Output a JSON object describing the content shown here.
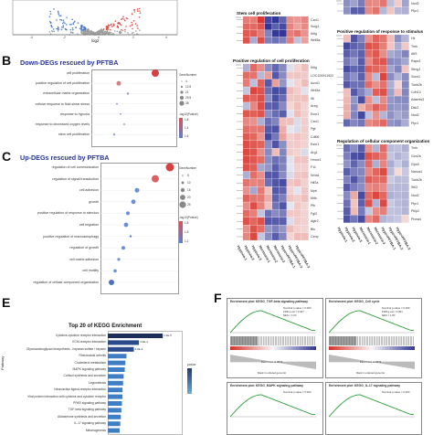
{
  "panels": {
    "A": {
      "axis_x": "log2",
      "ticks": [
        "-4",
        "-2",
        "0",
        "2",
        "4"
      ]
    },
    "B": {
      "letter": "B",
      "title": "Down-DEGs rescued by PFTBA",
      "terms": [
        "cell proliferation",
        "positive regulation of cell proliferation",
        "extracellular matrix organization",
        "cellular response to fluid shear stress",
        "response to hypoxia",
        "response to decreased oxygen levels",
        "stem cell proliferation"
      ],
      "legend_count_title": "GeneNumber",
      "legend_count_values": [
        "4",
        "12.5",
        "21",
        "29.5",
        "38"
      ],
      "legend_p_title": "-log10(Pvalue)",
      "legend_p_values": [
        "1.8",
        "1.4",
        "1.6"
      ]
    },
    "C": {
      "letter": "C",
      "title": "Up-DEGs rescued by PFTBA",
      "terms": [
        "regulation of cell communication",
        "regulation of signal transduction",
        "cell adhesion",
        "growth",
        "positive regulation of response to stimulus",
        "cell migration",
        "positive regulation of macroautophagy",
        "regulation of growth",
        "cell matrix adhesion",
        "cell motility",
        "regulation of cellular component organization"
      ],
      "legend_count_title": "GeneNumber",
      "legend_count_values": [
        "5",
        "10",
        "15",
        "20",
        "25"
      ],
      "legend_p_title": "-log10(Pvalue)",
      "legend_p_values": [
        "1.8",
        "1.5",
        "1.2"
      ]
    },
    "D": {
      "h1_title": "Stem cell proliferation",
      "h1_genes": [
        "Cxcl1",
        "Scrg1",
        "Kitlg",
        "Wnt5a"
      ],
      "h2_title": "Positive regulation of cell proliferation",
      "h2_genes": [
        "Kitlg",
        "LOC100911922",
        "Acvrl1",
        "Wnt5a",
        "Il6",
        "Areg",
        "Ecm1",
        "Cxcl1",
        "Pgf",
        "Cdl06",
        "Esm1",
        "Arg1",
        "Hmox1",
        "F11",
        "Nr4a1",
        "Hif2a",
        "Myb",
        "Mdk",
        "Ptk",
        "Fgf2",
        "Agtr2",
        "Btc",
        "Cenp"
      ],
      "h3_genes": [
        "Nod2",
        "Plpr1"
      ],
      "h4_title": "Positive regulation of response to stimulus",
      "h4_genes": [
        "Hk",
        "Trek",
        "Atf3",
        "Rapc3",
        "Stmg1",
        "Socs1",
        "Tubb2b",
        "Cdh13",
        "Adamts3",
        "Dkk2",
        "Nod2",
        "Plpr1"
      ],
      "h5_title": "Regulation of cellular component organization",
      "h5_genes": [
        "Trek",
        "Gon2b",
        "Gpx8",
        "Nanus1",
        "Tubb2b",
        "Stil3",
        "Nod2",
        "Plpr1",
        "Pklp2",
        "Plxna4"
      ],
      "columns": [
        "Hypoxia-1",
        "Hypoxia-2",
        "Hypoxia-3",
        "Normoxia-1",
        "Normoxia-2",
        "Normoxia-3",
        "Hypo+PFTBA-1",
        "Hypo+PFTBA-2",
        "Hypo+PFTBA-3"
      ]
    },
    "E": {
      "letter": "E",
      "title": "Top 20 of KEGG Enrichment",
      "ylabel": "Pathway",
      "terms": [
        "Cytokine-cytokine receptor interaction",
        "ECM-receptor interaction",
        "Glycosaminoglycan biosynthesis - heparan sulfate / heparin",
        "Rheumatoid arthritis",
        "Cholesterol metabolism",
        "MAPK signaling pathway",
        "Cortisol synthesis and secretion",
        "Legionellosis",
        "Neuroactive ligand-receptor interaction",
        "Viral protein interaction with cytokine and cytokine receptor",
        "PPAR signaling pathway",
        "TGF-beta signaling pathway",
        "Aldosterone synthesis and secretion",
        "IL-17 signaling pathway",
        "Melanogenesis"
      ],
      "values": [
        0.97,
        0.55,
        0.46,
        0.33,
        0.31,
        0.3,
        0.28,
        0.27,
        0.26,
        0.26,
        0.25,
        0.24,
        0.23,
        0.22,
        0.21
      ],
      "bar_labels": [
        "1.4E-5",
        "3.6E-4",
        "4.2E-3",
        "",
        "",
        "",
        "",
        "",
        "",
        "",
        "",
        "",
        "",
        "",
        ""
      ],
      "legend_title": "pvalue"
    },
    "F": {
      "letter": "F",
      "gsea": [
        {
          "title": "Enrichment plot: KEGG_TGF-beta signaling pathway",
          "stats": [
            "Nominal p-value = 0.000",
            "FDR q-val = 0.027",
            "NES = 1.53"
          ],
          "zero": "Zero cross at 9674",
          "xlabel": "Rank in ordered gene list"
        },
        {
          "title": "Enrichment plot: KEGG_Cell cycle",
          "stats": [
            "Nominal p-value = 0.000",
            "FDR q-val = 0.001",
            "NES = 1.83"
          ],
          "zero": "Zero cross at 9674",
          "xlabel": "Rank in ordered gene list"
        },
        {
          "title": "Enrichment plot: KEGG_MAPK signaling pathway",
          "stats": [
            "Nominal p-value = 0.000"
          ],
          "zero": "",
          "xlabel": ""
        },
        {
          "title": "Enrichment plot: KEGG_IL-17 signaling pathway",
          "stats": [
            "Nominal p-value = 0.000"
          ],
          "zero": "",
          "xlabel": ""
        }
      ]
    }
  },
  "colors": {
    "heat_high": "#d73027",
    "heat_low": "#313695",
    "heat_mid": "#f7f7f7",
    "panel_title": "#283593",
    "kegg_bar": "#1f3b73"
  }
}
